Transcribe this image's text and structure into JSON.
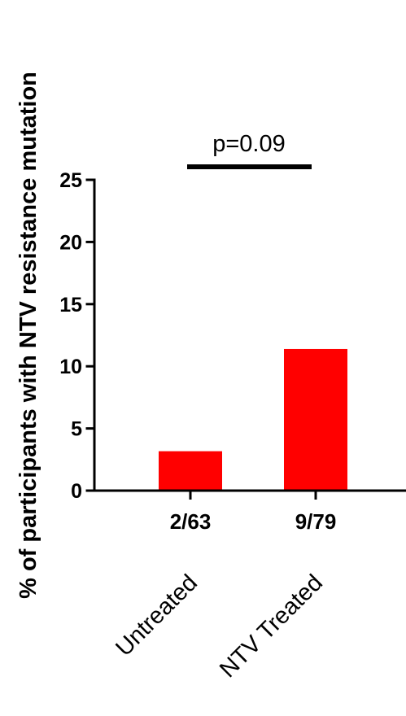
{
  "chart_data": {
    "type": "bar",
    "ylabel": "% of participants with NTV resistance mutation",
    "xlabel": "",
    "ylim": [
      0,
      25
    ],
    "yticks": [
      0,
      5,
      10,
      15,
      20,
      25
    ],
    "categories": [
      "Untreated",
      "NTV Treated"
    ],
    "values": [
      3.17,
      11.39
    ],
    "count_labels": [
      "2/63",
      "9/79"
    ],
    "bar_color": "#ff0000",
    "grid": false,
    "legend": "none",
    "significance": {
      "label": "p=0.09",
      "from_category": "Untreated",
      "to_category": "NTV Treated"
    }
  }
}
